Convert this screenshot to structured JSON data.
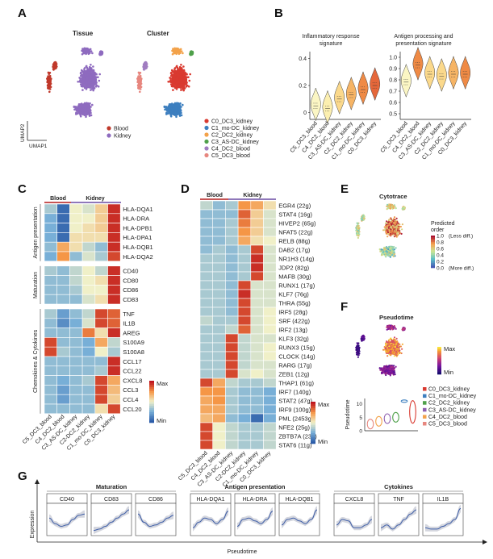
{
  "panels": {
    "A": {
      "label": "A",
      "left_title": "Tissue",
      "right_title": "Cluster",
      "xaxis": "UMAP1",
      "yaxis": "UMAP2",
      "tissue_legend": [
        {
          "name": "Blood",
          "color": "#c0392b"
        },
        {
          "name": "Kidney",
          "color": "#8e6bbf"
        }
      ],
      "cluster_legend": [
        {
          "name": "C0_DC3_kidney",
          "color": "#d93a30"
        },
        {
          "name": "C1_mo-DC_kidney",
          "color": "#3d7fbf"
        },
        {
          "name": "C2_DC2_kidney",
          "color": "#f3a24a"
        },
        {
          "name": "C3_AS-DC_kidney",
          "color": "#4fa04a"
        },
        {
          "name": "C4_DC2_blood",
          "color": "#a07cc0"
        },
        {
          "name": "C5_DC3_blood",
          "color": "#e7877f"
        }
      ]
    },
    "B": {
      "label": "B",
      "charts": [
        {
          "title_lines": [
            "Inflammatory response",
            "signature"
          ],
          "yticks": [
            "0",
            "0.2",
            "0.4"
          ]
        },
        {
          "title_lines": [
            "Antigen processing and",
            "presentation signature"
          ],
          "yticks": [
            "0.5",
            "0.6",
            "0.7",
            "0.8",
            "0.9",
            "1.0"
          ]
        }
      ],
      "categories": [
        "C5_DC3_blood",
        "C4_DC2_blood",
        "C3_AS-DC_kidney",
        "C2_DC2_kidney",
        "C1_mo-DC_kidney",
        "C0_DC3_kidney"
      ]
    },
    "C": {
      "label": "C",
      "group_blood": "Blood",
      "group_kidney": "Kidney",
      "section_labels": [
        "Antigen presentation",
        "Maturation",
        "Chemokines & Cytokines"
      ],
      "genes_sections": [
        [
          "HLA-DQA1",
          "HLA-DRA",
          "HLA-DPB1",
          "HLA-DPA1",
          "HLA-DQB1",
          "HLA-DQA2"
        ],
        [
          "CD40",
          "CD80",
          "CD86",
          "CD83"
        ],
        [
          "TNF",
          "IL1B",
          "AREG",
          "S100A9",
          "S100A8",
          "CCL17",
          "CCL22",
          "CXCL8",
          "CCL3",
          "CCL4",
          "CCL20"
        ]
      ],
      "columns": [
        "C5_DC3_blood",
        "C4_DC2_blood",
        "C3_AS-DC_kidney",
        "C2-DC2_kidney",
        "C1_mo-DC_kidney",
        "C0_DC3_kidney"
      ],
      "legend_max": "Max",
      "legend_min": "Min"
    },
    "D": {
      "label": "D",
      "group_blood": "Blood",
      "group_kidney": "Kidney",
      "rows": [
        "EGR4 (22g)",
        "STAT4 (16g)",
        "HIVEP2 (65g)",
        "NFAT5 (22g)",
        "RELB (88g)",
        "DAB2 (17g)",
        "NR1H3 (14g)",
        "JDP2 (82g)",
        "MAFB (30g)",
        "RUNX1 (17g)",
        "KLF7 (76g)",
        "THRA (55g)",
        "IRF5 (28g)",
        "SRF (422g)",
        "IRF2 (13g)",
        "KLF3 (32g)",
        "RUNX3 (15g)",
        "CLOCK (14g)",
        "RARG (17g)",
        "ZEB1 (12g)",
        "THAP1 (61g)",
        "IRF7 (140g)",
        "STAT2 (47g)",
        "IRF9 (100g)",
        "PML (2453g)",
        "NFE2 (25g)",
        "ZBTB7A (23g)",
        "STAT6 (11g)"
      ],
      "columns": [
        "C5_DC3_blood",
        "C4_DC2_blood",
        "C3_AS-DC_kidney",
        "C2-DC2_kidney",
        "C1_mo-DC_kidney",
        "C0_DC3_kidney"
      ],
      "legend_max": "Max",
      "legend_min": "Min"
    },
    "E": {
      "label": "E",
      "title": "Cytotrace",
      "legend_title_lines": [
        "Predicted",
        "order"
      ],
      "legend_ticks": [
        "1.0",
        "0.8",
        "0.6",
        "0.4",
        "0.2",
        "0.0"
      ],
      "legend_top_note": "(Less diff.)",
      "legend_bottom_note": "(More diff.)"
    },
    "F": {
      "label": "F",
      "title": "Pseudotime",
      "legend_max": "Max",
      "legend_min": "Min",
      "violin_ylabel": "Pseudotime",
      "violin_yticks": [
        "0",
        "5",
        "10"
      ],
      "violin_legend": [
        {
          "name": "C0_DC3_kidney",
          "color": "#d93a30"
        },
        {
          "name": "C1_mo-DC_kidney",
          "color": "#3d7fbf"
        },
        {
          "name": "C2_DC2_kidney",
          "color": "#4fa04a"
        },
        {
          "name": "C3_AS-DC_kidney",
          "color": "#8e5fb0"
        },
        {
          "name": "C4_DC2_blood",
          "color": "#f3a24a"
        },
        {
          "name": "C5_DC3_blood",
          "color": "#e7877f"
        }
      ]
    },
    "G": {
      "label": "G",
      "groups": [
        {
          "title": "Maturation",
          "genes": [
            "CD40",
            "CD83",
            "CD86"
          ]
        },
        {
          "title": "Antigen presentation",
          "genes": [
            "HLA-DQA1",
            "HLA-DRA",
            "HLA-DQB1"
          ]
        },
        {
          "title": "Cytokines",
          "genes": [
            "CXCL8",
            "TNF",
            "IL1B"
          ]
        }
      ],
      "ylabel": "Expression",
      "xlabel": "Pseudotime"
    }
  },
  "chart_data": [
    {
      "type": "violin",
      "title": "Inflammatory response signature",
      "categories": [
        "C5_DC3_blood",
        "C4_DC2_blood",
        "C3_AS-DC_kidney",
        "C2_DC2_kidney",
        "C1_mo-DC_kidney",
        "C0_DC3_kidney"
      ],
      "medians": [
        0.05,
        0.03,
        0.1,
        0.13,
        0.17,
        0.2
      ],
      "ylim": [
        -0.05,
        0.45
      ]
    },
    {
      "type": "violin",
      "title": "Antigen processing and presentation signature",
      "categories": [
        "C5_DC3_blood",
        "C4_DC2_blood",
        "C3_AS-DC_kidney",
        "C2_DC2_kidney",
        "C1_mo-DC_kidney",
        "C0_DC3_kidney"
      ],
      "medians": [
        0.78,
        0.93,
        0.85,
        0.83,
        0.85,
        0.85
      ],
      "ylim": [
        0.45,
        1.05
      ]
    },
    {
      "type": "heatmap",
      "title": "Panel C",
      "values": [
        [
          0.35,
          0.05,
          0.5,
          0.45,
          0.6,
          0.95
        ],
        [
          0.25,
          0.05,
          0.5,
          0.5,
          0.6,
          0.95
        ],
        [
          0.25,
          0.05,
          0.5,
          0.55,
          0.6,
          0.95
        ],
        [
          0.25,
          0.05,
          0.55,
          0.55,
          0.55,
          0.95
        ],
        [
          0.3,
          0.7,
          0.55,
          0.4,
          0.3,
          0.95
        ],
        [
          0.25,
          0.75,
          0.3,
          0.45,
          0.35,
          0.9
        ],
        [
          0.35,
          0.3,
          0.4,
          0.5,
          0.4,
          0.95
        ],
        [
          0.3,
          0.3,
          0.4,
          0.5,
          0.55,
          0.95
        ],
        [
          0.3,
          0.3,
          0.35,
          0.5,
          0.5,
          0.95
        ],
        [
          0.3,
          0.3,
          0.3,
          0.45,
          0.55,
          0.95
        ],
        [
          0.35,
          0.2,
          0.3,
          0.4,
          0.9,
          0.85
        ],
        [
          0.3,
          0.15,
          0.25,
          0.45,
          0.9,
          0.85
        ],
        [
          0.3,
          0.3,
          0.3,
          0.8,
          0.55,
          0.95
        ],
        [
          0.9,
          0.3,
          0.3,
          0.25,
          0.7,
          0.4
        ],
        [
          0.9,
          0.35,
          0.3,
          0.25,
          0.5,
          0.35
        ],
        [
          0.3,
          0.3,
          0.3,
          0.3,
          0.3,
          0.95
        ],
        [
          0.3,
          0.3,
          0.3,
          0.3,
          0.35,
          0.95
        ],
        [
          0.3,
          0.25,
          0.3,
          0.35,
          0.9,
          0.7
        ],
        [
          0.3,
          0.2,
          0.3,
          0.3,
          0.9,
          0.65
        ],
        [
          0.3,
          0.2,
          0.3,
          0.3,
          0.9,
          0.6
        ],
        [
          0.3,
          0.3,
          0.3,
          0.3,
          0.55,
          0.9
        ]
      ]
    },
    {
      "type": "heatmap",
      "title": "Panel D",
      "values": [
        [
          0.4,
          0.3,
          0.35,
          0.75,
          0.7,
          0.55
        ],
        [
          0.3,
          0.3,
          0.3,
          0.85,
          0.6,
          0.45
        ],
        [
          0.3,
          0.3,
          0.35,
          0.8,
          0.6,
          0.45
        ],
        [
          0.3,
          0.3,
          0.35,
          0.75,
          0.6,
          0.45
        ],
        [
          0.3,
          0.3,
          0.35,
          0.7,
          0.55,
          0.5
        ],
        [
          0.3,
          0.35,
          0.3,
          0.35,
          0.9,
          0.45
        ],
        [
          0.35,
          0.35,
          0.3,
          0.35,
          0.95,
          0.45
        ],
        [
          0.35,
          0.35,
          0.3,
          0.35,
          0.95,
          0.45
        ],
        [
          0.35,
          0.35,
          0.3,
          0.35,
          0.9,
          0.45
        ],
        [
          0.35,
          0.35,
          0.3,
          0.9,
          0.45,
          0.45
        ],
        [
          0.35,
          0.35,
          0.3,
          0.95,
          0.45,
          0.45
        ],
        [
          0.35,
          0.35,
          0.3,
          0.9,
          0.45,
          0.45
        ],
        [
          0.35,
          0.35,
          0.3,
          0.9,
          0.45,
          0.5
        ],
        [
          0.4,
          0.35,
          0.35,
          0.9,
          0.45,
          0.5
        ],
        [
          0.35,
          0.35,
          0.4,
          0.85,
          0.45,
          0.5
        ],
        [
          0.35,
          0.35,
          0.9,
          0.4,
          0.45,
          0.45
        ],
        [
          0.35,
          0.35,
          0.9,
          0.4,
          0.45,
          0.5
        ],
        [
          0.35,
          0.35,
          0.9,
          0.4,
          0.45,
          0.5
        ],
        [
          0.35,
          0.35,
          0.9,
          0.4,
          0.45,
          0.45
        ],
        [
          0.35,
          0.35,
          0.9,
          0.45,
          0.5,
          0.45
        ],
        [
          0.9,
          0.7,
          0.4,
          0.35,
          0.35,
          0.4
        ],
        [
          0.75,
          0.75,
          0.35,
          0.3,
          0.3,
          0.25
        ],
        [
          0.7,
          0.75,
          0.35,
          0.3,
          0.3,
          0.25
        ],
        [
          0.7,
          0.7,
          0.35,
          0.3,
          0.3,
          0.25
        ],
        [
          0.65,
          0.7,
          0.3,
          0.25,
          0.05,
          0.25
        ],
        [
          0.9,
          0.5,
          0.4,
          0.35,
          0.35,
          0.4
        ],
        [
          0.9,
          0.5,
          0.4,
          0.35,
          0.35,
          0.4
        ],
        [
          0.9,
          0.5,
          0.4,
          0.35,
          0.35,
          0.4
        ]
      ]
    },
    {
      "type": "line",
      "title": "Panel G",
      "genes": [
        "CD40",
        "CD83",
        "CD86",
        "HLA-DQA1",
        "HLA-DRA",
        "HLA-DQB1",
        "CXCL8",
        "TNF",
        "IL1B"
      ],
      "curves": [
        [
          0.55,
          0.35,
          0.25,
          0.3,
          0.5,
          0.65,
          0.7
        ],
        [
          0.1,
          0.15,
          0.25,
          0.4,
          0.55,
          0.7,
          0.85
        ],
        [
          0.7,
          0.4,
          0.25,
          0.3,
          0.4,
          0.55,
          0.65
        ],
        [
          0.2,
          0.4,
          0.55,
          0.5,
          0.35,
          0.5,
          0.8
        ],
        [
          0.25,
          0.5,
          0.55,
          0.45,
          0.35,
          0.5,
          0.8
        ],
        [
          0.3,
          0.5,
          0.55,
          0.45,
          0.35,
          0.5,
          0.85
        ],
        [
          0.3,
          0.5,
          0.45,
          0.2,
          0.2,
          0.3,
          0.5
        ],
        [
          0.2,
          0.3,
          0.15,
          0.3,
          0.5,
          0.7,
          0.85
        ],
        [
          0.2,
          0.15,
          0.15,
          0.25,
          0.35,
          0.5,
          0.9
        ]
      ]
    }
  ]
}
